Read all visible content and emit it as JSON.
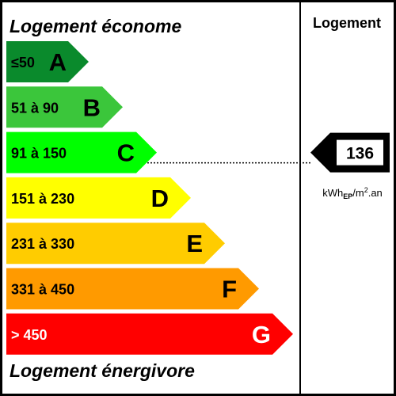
{
  "header": {
    "top_title": "Logement économe",
    "bottom_title": "Logement énergivore",
    "column_title": "Logement"
  },
  "classes": [
    {
      "letter": "A",
      "range": "≤50",
      "color": "#0a8a2c",
      "text_color": "#000000"
    },
    {
      "letter": "B",
      "range": "51 à 90",
      "color": "#3bc63b",
      "text_color": "#000000"
    },
    {
      "letter": "C",
      "range": "91 à 150",
      "color": "#00ff00",
      "text_color": "#000000"
    },
    {
      "letter": "D",
      "range": "151 à 230",
      "color": "#ffff00",
      "text_color": "#000000"
    },
    {
      "letter": "E",
      "range": "231 à 330",
      "color": "#ffcc00",
      "text_color": "#000000"
    },
    {
      "letter": "F",
      "range": "331 à 450",
      "color": "#ff9a00",
      "text_color": "#000000"
    },
    {
      "letter": "G",
      "range": "> 450",
      "color": "#ff0000",
      "text_color": "#ffffff"
    }
  ],
  "indicator": {
    "value": "136",
    "class_letter": "C",
    "unit_main": "kWh",
    "unit_sub": "EP",
    "unit_mid": "/m",
    "unit_sup": "2",
    "unit_end": ".an"
  }
}
